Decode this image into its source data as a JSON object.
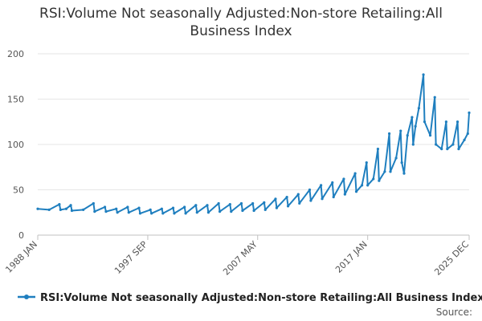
{
  "chart_data": {
    "type": "line",
    "title_lines": [
      "RSI:Volume Not seasonally Adjusted:Non-store Retailing:All",
      "Business Index"
    ],
    "y_ticks": [
      "0",
      "50",
      "100",
      "150",
      "200"
    ],
    "y_tick_values": [
      0,
      50,
      100,
      150,
      200
    ],
    "ylim": [
      0,
      200
    ],
    "x_tick_labels": [
      "1988 JAN",
      "1997 SEP",
      "2007 MAY",
      "2017 JAN",
      "2025 DEC"
    ],
    "x_tick_dates": [
      1988.0,
      1997.67,
      2007.33,
      2017.0,
      2025.92
    ],
    "xlim": [
      1988.0,
      2025.92
    ],
    "grid": true,
    "legend_position": "bottom",
    "series_color": "#1f7fbf",
    "series": [
      {
        "name": "RSI:Volume Not seasonally Adjusted:Non-store Retailing:All Business Index",
        "x": [
          1988.0,
          1989.0,
          1989.9,
          1990.0,
          1990.5,
          1990.9,
          1991.0,
          1992.0,
          1992.9,
          1993.0,
          1993.9,
          1994.0,
          1994.9,
          1995.0,
          1995.9,
          1996.0,
          1996.9,
          1997.0,
          1997.9,
          1998.0,
          1998.9,
          1999.0,
          1999.9,
          2000.0,
          2000.9,
          2001.0,
          2001.9,
          2002.0,
          2002.9,
          2003.0,
          2003.9,
          2004.0,
          2004.9,
          2005.0,
          2005.9,
          2006.0,
          2006.9,
          2007.0,
          2007.9,
          2008.0,
          2008.9,
          2009.0,
          2009.9,
          2010.0,
          2010.9,
          2011.0,
          2011.9,
          2012.0,
          2012.9,
          2013.0,
          2013.9,
          2014.0,
          2014.9,
          2015.0,
          2015.9,
          2016.0,
          2016.5,
          2016.9,
          2017.0,
          2017.5,
          2017.9,
          2018.0,
          2018.5,
          2018.9,
          2019.0,
          2019.5,
          2019.9,
          2020.0,
          2020.2,
          2020.5,
          2020.9,
          2021.0,
          2021.2,
          2021.5,
          2021.9,
          2022.0,
          2022.5,
          2022.9,
          2023.0,
          2023.5,
          2023.9,
          2024.0,
          2024.5,
          2024.9,
          2025.0,
          2025.5,
          2025.8,
          2025.92
        ],
        "values": [
          29,
          28,
          34,
          28,
          29,
          33,
          27,
          28,
          35,
          26,
          31,
          26,
          29,
          25,
          31,
          25,
          30,
          24,
          28,
          24,
          29,
          24,
          30,
          24,
          31,
          24,
          33,
          25,
          33,
          25,
          35,
          26,
          34,
          26,
          35,
          27,
          35,
          27,
          36,
          28,
          40,
          30,
          42,
          32,
          45,
          35,
          50,
          38,
          55,
          40,
          58,
          42,
          62,
          45,
          68,
          48,
          55,
          80,
          55,
          62,
          95,
          60,
          70,
          112,
          70,
          85,
          115,
          80,
          68,
          110,
          130,
          100,
          120,
          140,
          177,
          125,
          110,
          152,
          100,
          95,
          125,
          95,
          100,
          125,
          95,
          105,
          112,
          135
        ]
      }
    ],
    "source_label": "Source:"
  }
}
